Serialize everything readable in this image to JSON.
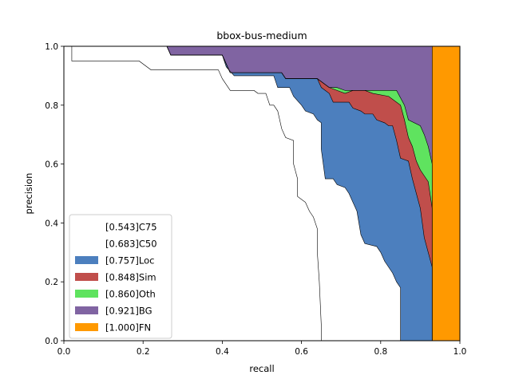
{
  "chart_data": {
    "type": "area",
    "title": "bbox-bus-medium",
    "xlabel": "recall",
    "ylabel": "precision",
    "xlim": [
      0,
      1
    ],
    "ylim": [
      0,
      1
    ],
    "xticks": [
      "0.0",
      "0.2",
      "0.4",
      "0.6",
      "0.8",
      "1.0"
    ],
    "yticks": [
      "0.0",
      "0.2",
      "0.4",
      "0.6",
      "0.8",
      "1.0"
    ],
    "grid": false,
    "legend_position": "lower-left",
    "series": [
      {
        "name": "[0.543]C75",
        "color": "#ffffff",
        "points": [
          [
            0,
            1
          ],
          [
            0.02,
            1
          ],
          [
            0.02,
            0.95
          ],
          [
            0.19,
            0.95
          ],
          [
            0.22,
            0.92
          ],
          [
            0.39,
            0.92
          ],
          [
            0.4,
            0.89
          ],
          [
            0.41,
            0.87
          ],
          [
            0.42,
            0.85
          ],
          [
            0.48,
            0.85
          ],
          [
            0.49,
            0.84
          ],
          [
            0.51,
            0.84
          ],
          [
            0.52,
            0.8
          ],
          [
            0.53,
            0.8
          ],
          [
            0.54,
            0.78
          ],
          [
            0.55,
            0.72
          ],
          [
            0.56,
            0.69
          ],
          [
            0.58,
            0.68
          ],
          [
            0.58,
            0.6
          ],
          [
            0.59,
            0.55
          ],
          [
            0.59,
            0.49
          ],
          [
            0.61,
            0.47
          ],
          [
            0.62,
            0.44
          ],
          [
            0.63,
            0.42
          ],
          [
            0.64,
            0.38
          ],
          [
            0.64,
            0.3
          ],
          [
            0.645,
            0.2
          ],
          [
            0.65,
            0.05
          ],
          [
            0.65,
            0
          ]
        ]
      },
      {
        "name": "[0.683]C50",
        "color": "#ffffff",
        "points": [
          [
            0,
            1
          ],
          [
            0.26,
            1
          ],
          [
            0.27,
            0.97
          ],
          [
            0.4,
            0.97
          ],
          [
            0.41,
            0.93
          ],
          [
            0.43,
            0.9
          ],
          [
            0.53,
            0.9
          ],
          [
            0.54,
            0.86
          ],
          [
            0.57,
            0.86
          ],
          [
            0.58,
            0.83
          ],
          [
            0.6,
            0.8
          ],
          [
            0.61,
            0.78
          ],
          [
            0.63,
            0.77
          ],
          [
            0.64,
            0.75
          ],
          [
            0.65,
            0.74
          ],
          [
            0.65,
            0.65
          ],
          [
            0.66,
            0.55
          ],
          [
            0.68,
            0.55
          ],
          [
            0.69,
            0.53
          ],
          [
            0.71,
            0.52
          ],
          [
            0.72,
            0.5
          ],
          [
            0.73,
            0.47
          ],
          [
            0.74,
            0.44
          ],
          [
            0.75,
            0.36
          ],
          [
            0.76,
            0.33
          ],
          [
            0.79,
            0.32
          ],
          [
            0.8,
            0.3
          ],
          [
            0.81,
            0.27
          ],
          [
            0.83,
            0.23
          ],
          [
            0.84,
            0.2
          ],
          [
            0.85,
            0.18
          ],
          [
            0.85,
            0
          ]
        ]
      },
      {
        "name": "[0.757]Loc",
        "color": "#4c7fbe",
        "points": [
          [
            0,
            1
          ],
          [
            0.26,
            1
          ],
          [
            0.27,
            0.97
          ],
          [
            0.4,
            0.97
          ],
          [
            0.42,
            0.91
          ],
          [
            0.55,
            0.91
          ],
          [
            0.56,
            0.89
          ],
          [
            0.64,
            0.89
          ],
          [
            0.65,
            0.86
          ],
          [
            0.67,
            0.84
          ],
          [
            0.68,
            0.81
          ],
          [
            0.72,
            0.81
          ],
          [
            0.73,
            0.79
          ],
          [
            0.75,
            0.78
          ],
          [
            0.76,
            0.77
          ],
          [
            0.78,
            0.77
          ],
          [
            0.79,
            0.75
          ],
          [
            0.81,
            0.74
          ],
          [
            0.82,
            0.73
          ],
          [
            0.83,
            0.73
          ],
          [
            0.84,
            0.68
          ],
          [
            0.85,
            0.62
          ],
          [
            0.87,
            0.61
          ],
          [
            0.88,
            0.55
          ],
          [
            0.9,
            0.45
          ],
          [
            0.91,
            0.35
          ],
          [
            0.92,
            0.3
          ],
          [
            0.93,
            0.25
          ],
          [
            0.93,
            0
          ]
        ]
      },
      {
        "name": "[0.848]Sim",
        "color": "#c04e4b",
        "points": [
          [
            0,
            1
          ],
          [
            0.26,
            1
          ],
          [
            0.27,
            0.97
          ],
          [
            0.4,
            0.97
          ],
          [
            0.42,
            0.91
          ],
          [
            0.55,
            0.91
          ],
          [
            0.56,
            0.89
          ],
          [
            0.64,
            0.89
          ],
          [
            0.67,
            0.86
          ],
          [
            0.69,
            0.85
          ],
          [
            0.71,
            0.84
          ],
          [
            0.73,
            0.85
          ],
          [
            0.76,
            0.85
          ],
          [
            0.78,
            0.84
          ],
          [
            0.82,
            0.83
          ],
          [
            0.85,
            0.8
          ],
          [
            0.86,
            0.75
          ],
          [
            0.87,
            0.69
          ],
          [
            0.88,
            0.66
          ],
          [
            0.89,
            0.61
          ],
          [
            0.9,
            0.58
          ],
          [
            0.91,
            0.56
          ],
          [
            0.92,
            0.54
          ],
          [
            0.93,
            0.45
          ],
          [
            0.93,
            0
          ]
        ]
      },
      {
        "name": "[0.860]Oth",
        "color": "#5fe35f",
        "points": [
          [
            0,
            1
          ],
          [
            0.26,
            1
          ],
          [
            0.27,
            0.97
          ],
          [
            0.4,
            0.97
          ],
          [
            0.42,
            0.91
          ],
          [
            0.55,
            0.91
          ],
          [
            0.56,
            0.89
          ],
          [
            0.64,
            0.89
          ],
          [
            0.67,
            0.86
          ],
          [
            0.69,
            0.86
          ],
          [
            0.71,
            0.85
          ],
          [
            0.76,
            0.85
          ],
          [
            0.84,
            0.85
          ],
          [
            0.86,
            0.8
          ],
          [
            0.87,
            0.75
          ],
          [
            0.9,
            0.73
          ],
          [
            0.91,
            0.7
          ],
          [
            0.92,
            0.66
          ],
          [
            0.93,
            0.6
          ],
          [
            0.93,
            0
          ]
        ]
      },
      {
        "name": "[0.921]BG",
        "color": "#8064a2",
        "points": [
          [
            0,
            1
          ],
          [
            0.93,
            1
          ],
          [
            0.93,
            0
          ]
        ]
      },
      {
        "name": "[1.000]FN",
        "color": "#ff9900",
        "points": [
          [
            0,
            1
          ],
          [
            1,
            1
          ],
          [
            1,
            0
          ]
        ]
      }
    ]
  }
}
